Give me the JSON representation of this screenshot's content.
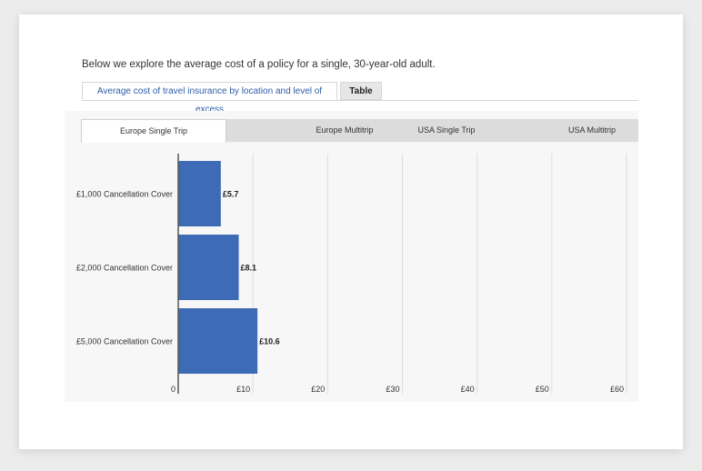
{
  "intro_text": "Below we explore the average cost of a policy for a single, 30-year-old adult.",
  "top_tabs": [
    {
      "label": "Average cost of travel insurance by location and level of excess",
      "active": true
    },
    {
      "label": "Table",
      "active": false
    }
  ],
  "sub_tabs": [
    {
      "label": "Europe Single Trip",
      "active": true
    },
    {
      "label": "Europe Multitrip",
      "active": false
    },
    {
      "label": "USA Single Trip",
      "active": false
    },
    {
      "label": "USA Multitrip",
      "active": false
    }
  ],
  "colors": {
    "bar": "#3d6bb5",
    "grid": "#dddddd",
    "axis": "#555555",
    "active_tab_text": "#2f5ea8"
  },
  "chart_data": {
    "type": "bar",
    "orientation": "horizontal",
    "categories": [
      "£1,000 Cancellation Cover",
      "£2,000 Cancellation Cover",
      "£5,000 Cancellation Cover"
    ],
    "values": [
      5.7,
      8.1,
      10.6
    ],
    "data_labels": [
      "£5.7",
      "£8.1",
      "£10.6"
    ],
    "xlim": [
      0,
      60
    ],
    "xticks": [
      0,
      10,
      20,
      30,
      40,
      50,
      60
    ],
    "xtick_labels": [
      "0",
      "£10",
      "£20",
      "£30",
      "£40",
      "£50",
      "£60"
    ],
    "grid": true,
    "title": "",
    "xlabel": "",
    "ylabel": ""
  }
}
